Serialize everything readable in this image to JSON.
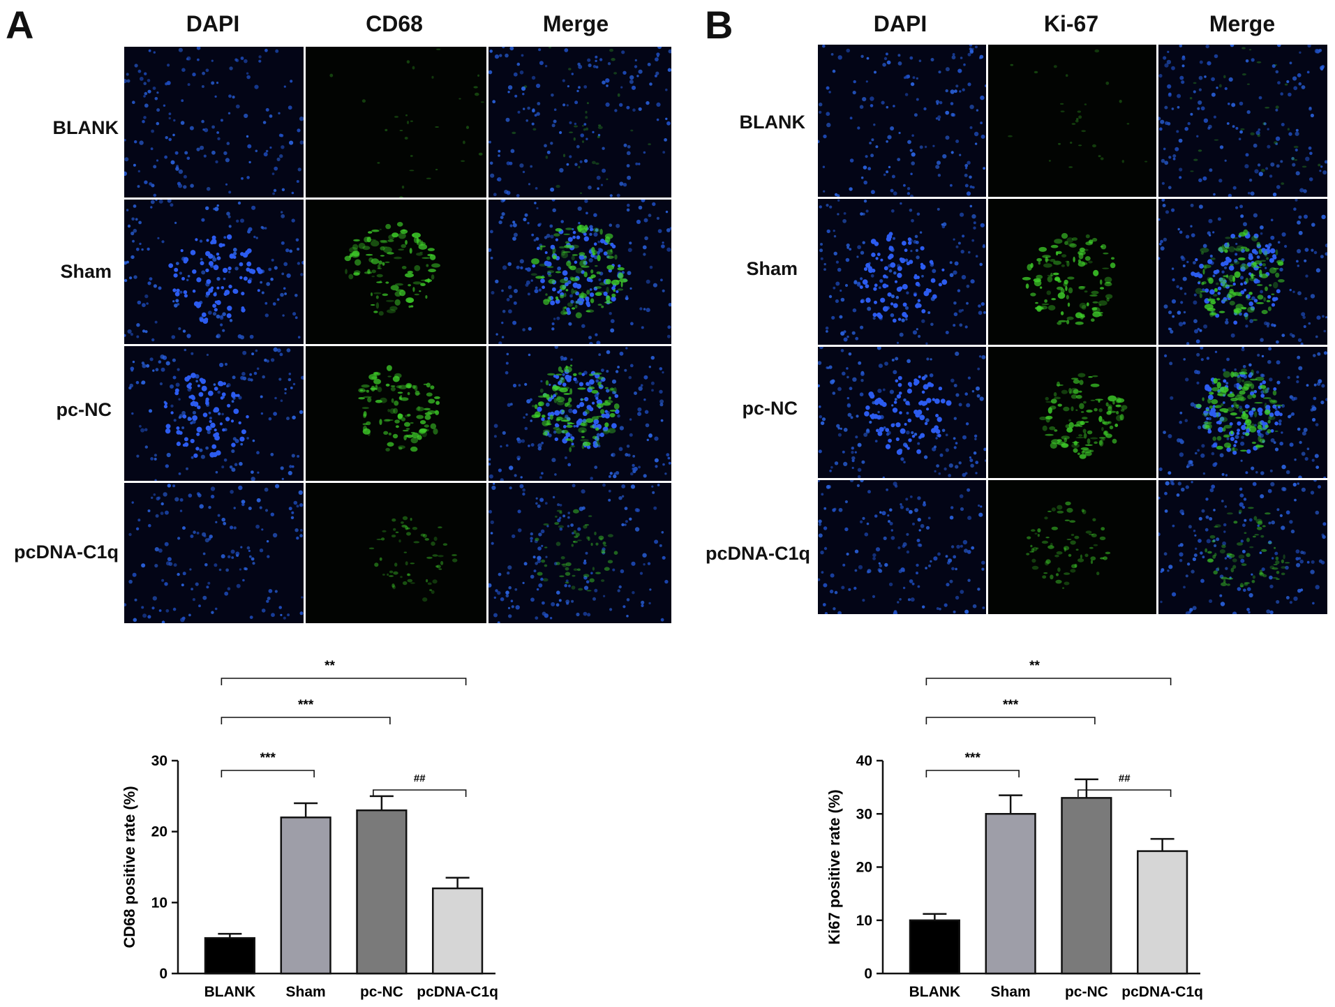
{
  "panels": [
    {
      "letter": "A",
      "columns": [
        "DAPI",
        "CD68",
        "Merge"
      ],
      "rows": [
        "BLANK",
        "Sham",
        "pc-NC",
        "pcDNA-C1q"
      ],
      "green_intensity": [
        0.12,
        0.85,
        0.8,
        0.35
      ]
    },
    {
      "letter": "B",
      "columns": [
        "DAPI",
        "Ki-67",
        "Merge"
      ],
      "rows": [
        "BLANK",
        "Sham",
        "pc-NC",
        "pcDNA-C1q"
      ],
      "green_intensity": [
        0.1,
        0.85,
        0.85,
        0.45
      ]
    }
  ],
  "chart_data": [
    {
      "type": "bar",
      "categories": [
        "BLANK",
        "Sham",
        "pc-NC",
        "pcDNA-C1q"
      ],
      "values": [
        5,
        22,
        23,
        12
      ],
      "errors": [
        0.6,
        2,
        2,
        1.5
      ],
      "ylabel": "CD68 positive rate (%)",
      "ylim": [
        0,
        30
      ],
      "yticks": [
        0,
        10,
        20,
        30
      ],
      "bar_colors": [
        "#000000",
        "#9e9ea8",
        "#7a7a7a",
        "#d6d6d6"
      ],
      "brackets": [
        {
          "from": 0,
          "to": 1,
          "label": "***"
        },
        {
          "from": 2,
          "to": 3,
          "label": "##"
        },
        {
          "from": 0,
          "to": 2,
          "label": "***"
        },
        {
          "from": 0,
          "to": 3,
          "label": "**"
        }
      ]
    },
    {
      "type": "bar",
      "categories": [
        "BLANK",
        "Sham",
        "pc-NC",
        "pcDNA-C1q"
      ],
      "values": [
        10,
        30,
        33,
        23
      ],
      "errors": [
        1.2,
        3.5,
        3.5,
        2.3
      ],
      "ylabel": "Ki67 positive rate (%)",
      "ylim": [
        0,
        40
      ],
      "yticks": [
        0,
        10,
        20,
        30,
        40
      ],
      "bar_colors": [
        "#000000",
        "#9e9ea8",
        "#7a7a7a",
        "#d6d6d6"
      ],
      "brackets": [
        {
          "from": 0,
          "to": 1,
          "label": "***"
        },
        {
          "from": 2,
          "to": 3,
          "label": "##"
        },
        {
          "from": 0,
          "to": 2,
          "label": "***"
        },
        {
          "from": 0,
          "to": 3,
          "label": "**"
        }
      ]
    }
  ]
}
